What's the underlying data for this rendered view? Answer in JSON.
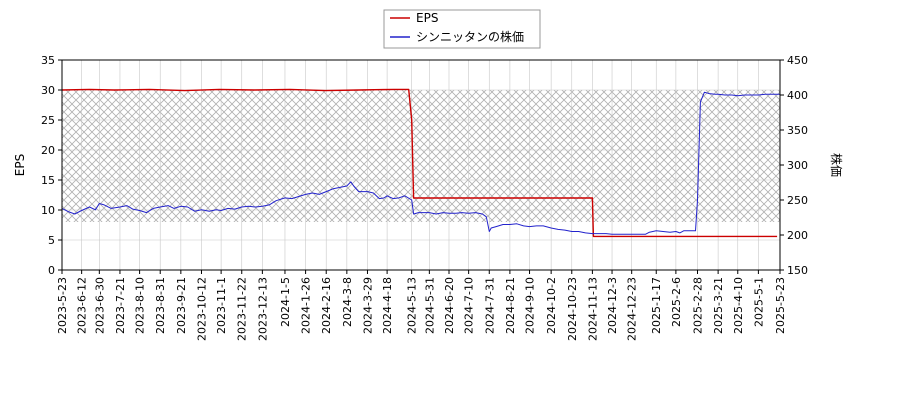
{
  "chart_data": {
    "type": "line",
    "ylabel_left": "EPS",
    "ylabel_right": "株価",
    "ylim_left": [
      0,
      35
    ],
    "ylim_right": [
      150,
      450
    ],
    "yticks_left": [
      0,
      5,
      10,
      15,
      20,
      25,
      30,
      35
    ],
    "yticks_right": [
      150,
      200,
      250,
      300,
      350,
      400,
      450
    ],
    "x_range": [
      "2023-05-23",
      "2025-05-23"
    ],
    "xtick_labels": [
      "2023-5-23",
      "2023-6-12",
      "2023-6-30",
      "2023-7-21",
      "2023-8-10",
      "2023-8-31",
      "2023-9-21",
      "2023-10-12",
      "2023-11-1",
      "2023-11-22",
      "2023-12-13",
      "2024-1-5",
      "2024-1-26",
      "2024-2-16",
      "2024-3-8",
      "2024-3-29",
      "2024-4-18",
      "2024-5-13",
      "2024-5-31",
      "2024-6-20",
      "2024-7-10",
      "2024-7-31",
      "2024-8-21",
      "2024-9-10",
      "2024-10-2",
      "2024-10-23",
      "2024-11-13",
      "2024-12-3",
      "2024-12-23",
      "2025-1-17",
      "2025-2-6",
      "2025-2-28",
      "2025-3-21",
      "2025-4-10",
      "2025-5-1",
      "2025-5-23"
    ],
    "xtick_dates": [
      "2023-05-23",
      "2023-06-12",
      "2023-06-30",
      "2023-07-21",
      "2023-08-10",
      "2023-08-31",
      "2023-09-21",
      "2023-10-12",
      "2023-11-01",
      "2023-11-22",
      "2023-12-13",
      "2024-01-05",
      "2024-01-26",
      "2024-02-16",
      "2024-03-08",
      "2024-03-29",
      "2024-04-18",
      "2024-05-13",
      "2024-05-31",
      "2024-06-20",
      "2024-07-10",
      "2024-07-31",
      "2024-08-21",
      "2024-09-10",
      "2024-10-02",
      "2024-10-23",
      "2024-11-13",
      "2024-12-03",
      "2024-12-23",
      "2025-01-17",
      "2025-02-06",
      "2025-02-28",
      "2025-03-21",
      "2025-04-10",
      "2025-05-01",
      "2025-05-23"
    ],
    "hatch_band": [
      8,
      30
    ],
    "legend_position": "top-center",
    "series": [
      {
        "name": "EPS",
        "color": "#cc0000",
        "axis": "left",
        "points": [
          [
            "2023-05-23",
            30.0
          ],
          [
            "2023-06-20",
            30.1
          ],
          [
            "2023-07-15",
            30.0
          ],
          [
            "2023-08-20",
            30.1
          ],
          [
            "2023-09-25",
            29.9
          ],
          [
            "2023-10-30",
            30.1
          ],
          [
            "2023-12-05",
            30.0
          ],
          [
            "2024-01-10",
            30.1
          ],
          [
            "2024-02-15",
            29.9
          ],
          [
            "2024-03-20",
            30.0
          ],
          [
            "2024-04-25",
            30.1
          ],
          [
            "2024-05-10",
            30.1
          ],
          [
            "2024-05-13",
            25.0
          ],
          [
            "2024-05-15",
            12.0
          ],
          [
            "2024-11-13",
            12.0
          ],
          [
            "2024-11-14",
            5.6
          ],
          [
            "2025-05-20",
            5.6
          ]
        ]
      },
      {
        "name": "シンニッタンの株価",
        "color": "#2222cc",
        "axis": "right",
        "points": [
          [
            "2023-05-23",
            238
          ],
          [
            "2023-05-30",
            233
          ],
          [
            "2023-06-05",
            230
          ],
          [
            "2023-06-12",
            235
          ],
          [
            "2023-06-20",
            240
          ],
          [
            "2023-06-26",
            236
          ],
          [
            "2023-06-30",
            245
          ],
          [
            "2023-07-05",
            243
          ],
          [
            "2023-07-12",
            238
          ],
          [
            "2023-07-21",
            240
          ],
          [
            "2023-07-28",
            242
          ],
          [
            "2023-08-03",
            237
          ],
          [
            "2023-08-10",
            235
          ],
          [
            "2023-08-17",
            232
          ],
          [
            "2023-08-24",
            238
          ],
          [
            "2023-08-31",
            240
          ],
          [
            "2023-09-08",
            242
          ],
          [
            "2023-09-14",
            238
          ],
          [
            "2023-09-21",
            241
          ],
          [
            "2023-09-28",
            240
          ],
          [
            "2023-10-05",
            234
          ],
          [
            "2023-10-12",
            236
          ],
          [
            "2023-10-20",
            234
          ],
          [
            "2023-10-27",
            236
          ],
          [
            "2023-11-01",
            235
          ],
          [
            "2023-11-08",
            238
          ],
          [
            "2023-11-15",
            237
          ],
          [
            "2023-11-22",
            240
          ],
          [
            "2023-11-29",
            241
          ],
          [
            "2023-12-06",
            240
          ],
          [
            "2023-12-13",
            241
          ],
          [
            "2023-12-20",
            243
          ],
          [
            "2023-12-27",
            249
          ],
          [
            "2024-01-05",
            253
          ],
          [
            "2024-01-12",
            252
          ],
          [
            "2024-01-19",
            255
          ],
          [
            "2024-01-26",
            258
          ],
          [
            "2024-02-02",
            260
          ],
          [
            "2024-02-09",
            258
          ],
          [
            "2024-02-16",
            262
          ],
          [
            "2024-02-23",
            266
          ],
          [
            "2024-03-01",
            268
          ],
          [
            "2024-03-08",
            270
          ],
          [
            "2024-03-12",
            276
          ],
          [
            "2024-03-15",
            270
          ],
          [
            "2024-03-20",
            262
          ],
          [
            "2024-03-26",
            262
          ],
          [
            "2024-03-29",
            262
          ],
          [
            "2024-04-04",
            260
          ],
          [
            "2024-04-10",
            252
          ],
          [
            "2024-04-15",
            253
          ],
          [
            "2024-04-18",
            256
          ],
          [
            "2024-04-24",
            252
          ],
          [
            "2024-04-30",
            253
          ],
          [
            "2024-05-06",
            256
          ],
          [
            "2024-05-13",
            250
          ],
          [
            "2024-05-15",
            230
          ],
          [
            "2024-05-20",
            232
          ],
          [
            "2024-05-31",
            232
          ],
          [
            "2024-06-07",
            230
          ],
          [
            "2024-06-14",
            232
          ],
          [
            "2024-06-20",
            231
          ],
          [
            "2024-06-27",
            231
          ],
          [
            "2024-07-03",
            232
          ],
          [
            "2024-07-10",
            231
          ],
          [
            "2024-07-17",
            232
          ],
          [
            "2024-07-24",
            230
          ],
          [
            "2024-07-28",
            226
          ],
          [
            "2024-07-31",
            205
          ],
          [
            "2024-08-02",
            210
          ],
          [
            "2024-08-07",
            212
          ],
          [
            "2024-08-14",
            215
          ],
          [
            "2024-08-21",
            215
          ],
          [
            "2024-08-28",
            216
          ],
          [
            "2024-09-04",
            213
          ],
          [
            "2024-09-10",
            212
          ],
          [
            "2024-09-17",
            213
          ],
          [
            "2024-09-24",
            213
          ],
          [
            "2024-10-02",
            210
          ],
          [
            "2024-10-09",
            208
          ],
          [
            "2024-10-16",
            207
          ],
          [
            "2024-10-23",
            205
          ],
          [
            "2024-10-30",
            205
          ],
          [
            "2024-11-06",
            203
          ],
          [
            "2024-11-13",
            202
          ],
          [
            "2024-11-20",
            202
          ],
          [
            "2024-11-27",
            202
          ],
          [
            "2024-12-03",
            201
          ],
          [
            "2024-12-10",
            201
          ],
          [
            "2024-12-17",
            201
          ],
          [
            "2024-12-23",
            201
          ],
          [
            "2025-01-06",
            201
          ],
          [
            "2025-01-10",
            204
          ],
          [
            "2025-01-17",
            206
          ],
          [
            "2025-01-24",
            205
          ],
          [
            "2025-01-31",
            204
          ],
          [
            "2025-02-06",
            205
          ],
          [
            "2025-02-10",
            203
          ],
          [
            "2025-02-14",
            206
          ],
          [
            "2025-02-20",
            206
          ],
          [
            "2025-02-26",
            206
          ],
          [
            "2025-02-28",
            250
          ],
          [
            "2025-03-03",
            390
          ],
          [
            "2025-03-07",
            404
          ],
          [
            "2025-03-12",
            402
          ],
          [
            "2025-03-18",
            401
          ],
          [
            "2025-03-21",
            401
          ],
          [
            "2025-03-28",
            400
          ],
          [
            "2025-04-04",
            400
          ],
          [
            "2025-04-10",
            399
          ],
          [
            "2025-04-17",
            400
          ],
          [
            "2025-04-24",
            400
          ],
          [
            "2025-05-01",
            400
          ],
          [
            "2025-05-08",
            401
          ],
          [
            "2025-05-15",
            401
          ],
          [
            "2025-05-23",
            401
          ]
        ]
      }
    ]
  }
}
